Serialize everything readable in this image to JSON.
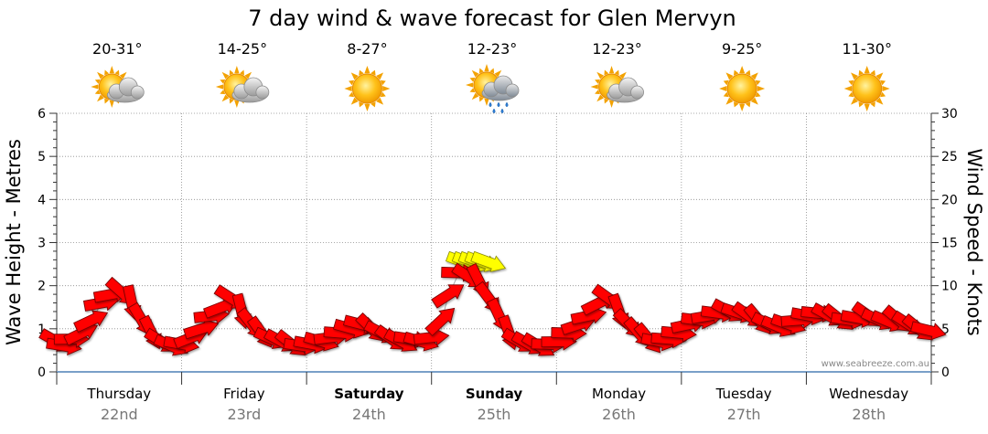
{
  "chart_data": {
    "type": "line",
    "title": "7 day wind & wave forecast for Glen Mervyn",
    "ylabel": "Wave Height - Metres",
    "y2label": "Wind Speed - Knots",
    "ylim": [
      0,
      6
    ],
    "y2lim": [
      0,
      30
    ],
    "yticks": [
      "0",
      "1",
      "2",
      "3",
      "4",
      "5",
      "6"
    ],
    "y2ticks": [
      "0",
      "5",
      "10",
      "15",
      "20",
      "25",
      "30"
    ],
    "grid": true,
    "watermark": "www.seabreeze.com.au",
    "days": [
      {
        "name": "Thursday",
        "date": "22nd",
        "temp": "20-31°",
        "icon": "partly-cloudy-icon",
        "bold": false
      },
      {
        "name": "Friday",
        "date": "23rd",
        "temp": "14-25°",
        "icon": "partly-cloudy-icon",
        "bold": false
      },
      {
        "name": "Saturday",
        "date": "24th",
        "temp": "8-27°",
        "icon": "sunny-icon",
        "bold": true
      },
      {
        "name": "Sunday",
        "date": "25th",
        "temp": "12-23°",
        "icon": "showers-icon",
        "bold": true
      },
      {
        "name": "Monday",
        "date": "26th",
        "temp": "12-23°",
        "icon": "partly-cloudy-icon",
        "bold": false
      },
      {
        "name": "Tuesday",
        "date": "27th",
        "temp": "9-25°",
        "icon": "sunny-icon",
        "bold": false
      },
      {
        "name": "Wednesday",
        "date": "28th",
        "temp": "11-30°",
        "icon": "sunny-icon",
        "bold": false
      }
    ],
    "wind_series": {
      "unit": "knots",
      "x_unit": "day index (0 = Thursday 00:00)",
      "points": [
        [
          0.0,
          3.5
        ],
        [
          0.06,
          3.0
        ],
        [
          0.12,
          3.8
        ],
        [
          0.2,
          4.5
        ],
        [
          0.28,
          6.0
        ],
        [
          0.36,
          8.0
        ],
        [
          0.44,
          9.0
        ],
        [
          0.52,
          9.2
        ],
        [
          0.6,
          8.0
        ],
        [
          0.68,
          6.0
        ],
        [
          0.76,
          4.5
        ],
        [
          0.84,
          3.5
        ],
        [
          0.92,
          3.0
        ],
        [
          1.0,
          3.2
        ],
        [
          1.08,
          4.0
        ],
        [
          1.16,
          5.0
        ],
        [
          1.24,
          6.5
        ],
        [
          1.32,
          7.5
        ],
        [
          1.4,
          8.5
        ],
        [
          1.48,
          7.0
        ],
        [
          1.56,
          5.5
        ],
        [
          1.64,
          4.5
        ],
        [
          1.72,
          3.8
        ],
        [
          1.8,
          3.5
        ],
        [
          1.88,
          3.2
        ],
        [
          1.96,
          3.0
        ],
        [
          2.04,
          3.2
        ],
        [
          2.12,
          3.5
        ],
        [
          2.2,
          4.0
        ],
        [
          2.28,
          4.5
        ],
        [
          2.36,
          5.0
        ],
        [
          2.44,
          5.5
        ],
        [
          2.52,
          5.0
        ],
        [
          2.6,
          4.5
        ],
        [
          2.68,
          3.8
        ],
        [
          2.76,
          3.5
        ],
        [
          2.84,
          3.8
        ],
        [
          2.92,
          3.5
        ],
        [
          3.0,
          4.0
        ],
        [
          3.08,
          6.0
        ],
        [
          3.14,
          9.0
        ],
        [
          3.22,
          11.5
        ],
        [
          3.3,
          11.0
        ],
        [
          3.38,
          10.5
        ],
        [
          3.46,
          8.5
        ],
        [
          3.54,
          6.5
        ],
        [
          3.62,
          4.5
        ],
        [
          3.7,
          3.5
        ],
        [
          3.78,
          3.2
        ],
        [
          3.86,
          3.0
        ],
        [
          3.94,
          3.2
        ],
        [
          4.02,
          3.5
        ],
        [
          4.1,
          4.5
        ],
        [
          4.18,
          5.5
        ],
        [
          4.26,
          6.5
        ],
        [
          4.34,
          8.0
        ],
        [
          4.42,
          8.5
        ],
        [
          4.5,
          7.0
        ],
        [
          4.58,
          5.5
        ],
        [
          4.66,
          4.5
        ],
        [
          4.74,
          3.8
        ],
        [
          4.82,
          3.5
        ],
        [
          4.9,
          3.8
        ],
        [
          4.98,
          4.5
        ],
        [
          5.06,
          5.5
        ],
        [
          5.14,
          6.0
        ],
        [
          5.22,
          6.5
        ],
        [
          5.3,
          6.8
        ],
        [
          5.38,
          7.0
        ],
        [
          5.46,
          6.8
        ],
        [
          5.54,
          6.5
        ],
        [
          5.62,
          6.0
        ],
        [
          5.7,
          5.5
        ],
        [
          5.78,
          5.2
        ],
        [
          5.86,
          5.5
        ],
        [
          5.94,
          6.0
        ],
        [
          6.02,
          6.5
        ],
        [
          6.1,
          6.8
        ],
        [
          6.18,
          6.5
        ],
        [
          6.26,
          6.2
        ],
        [
          6.34,
          6.0
        ],
        [
          6.42,
          6.2
        ],
        [
          6.5,
          6.5
        ],
        [
          6.58,
          6.0
        ],
        [
          6.66,
          5.8
        ],
        [
          6.74,
          6.0
        ],
        [
          6.82,
          5.5
        ],
        [
          6.9,
          5.0
        ],
        [
          6.98,
          4.8
        ]
      ],
      "strong_highlight": {
        "from": 3.26,
        "to": 3.46,
        "speed": 12.5
      }
    }
  }
}
